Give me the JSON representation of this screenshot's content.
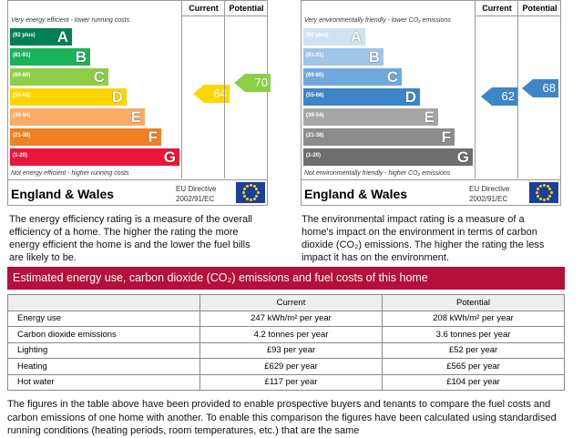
{
  "energy_chart": {
    "columns": [
      "Current",
      "Potential"
    ],
    "top_note": "Very energy efficient - lower running costs",
    "bottom_note": "Not energy efficient - higher running costs",
    "bands": [
      {
        "range": "(92 plus)",
        "letter": "A"
      },
      {
        "range": "(81-91)",
        "letter": "B"
      },
      {
        "range": "(69-80)",
        "letter": "C"
      },
      {
        "range": "(55-68)",
        "letter": "D"
      },
      {
        "range": "(39-54)",
        "letter": "E"
      },
      {
        "range": "(21-38)",
        "letter": "F"
      },
      {
        "range": "(1-20)",
        "letter": "G"
      }
    ],
    "current": 64,
    "potential": 70,
    "region": "England & Wales",
    "directive": [
      "EU Directive",
      "2002/91/EC"
    ],
    "description": "The energy efficiency rating is a measure of the overall efficiency of a home. The higher the rating the more energy efficient the home is and the lower the fuel bills are likely to be."
  },
  "environment_chart": {
    "columns": [
      "Current",
      "Potential"
    ],
    "top_note": "Very environmentally friendly - lower CO₂ emissions",
    "bottom_note": "Not environmentally friendly - higher CO₂ emissions",
    "bands": [
      {
        "range": "(92 plus)",
        "letter": "A"
      },
      {
        "range": "(81-91)",
        "letter": "B"
      },
      {
        "range": "(69-80)",
        "letter": "C"
      },
      {
        "range": "(55-68)",
        "letter": "D"
      },
      {
        "range": "(39-54)",
        "letter": "E"
      },
      {
        "range": "(21-38)",
        "letter": "F"
      },
      {
        "range": "(1-20)",
        "letter": "G"
      }
    ],
    "current": 62,
    "potential": 68,
    "region": "England & Wales",
    "directive": [
      "EU Directive",
      "2002/91/EC"
    ],
    "description": "The environmental impact rating is a measure of a home's impact on the environment in terms of carbon dioxide (CO₂) emissions. The higher the rating the less impact it has on the environment."
  },
  "banner": "Estimated energy use, carbon dioxide (CO₂) emissions and fuel costs of this home",
  "table": {
    "header": [
      "Current",
      "Potential"
    ],
    "rows": [
      [
        "Energy use",
        "247 kWh/m² per year",
        "208 kWh/m² per year"
      ],
      [
        "Carbon dioxide emissions",
        "4.2 tonnes per year",
        "3.6 tonnes per year"
      ],
      [
        "Lighting",
        "£93 per year",
        "£52 per year"
      ],
      [
        "Heating",
        "£629 per year",
        "£565 per year"
      ],
      [
        "Hot water",
        "£117 per year",
        "£104 per year"
      ]
    ]
  },
  "footer": "The figures in the table above have been provided to enable prospective buyers and tenants to compare the fuel costs and carbon emissions of one home with another. To enable this comparison the figures have been calculated using standardised running conditions (heating periods, room temperatures, etc.) that are the same"
}
